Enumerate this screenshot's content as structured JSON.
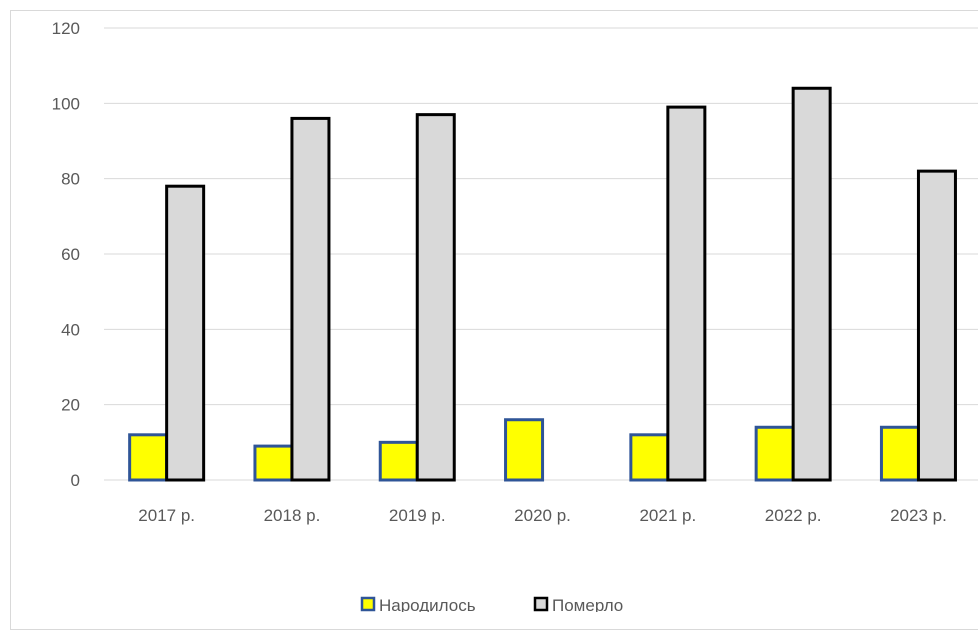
{
  "chart_data": {
    "type": "bar",
    "categories": [
      "2017 р.",
      "2018 р.",
      "2019 р.",
      "2020 р.",
      "2021 р.",
      "2022 р.",
      "2023 р."
    ],
    "series": [
      {
        "name": "Народилось",
        "values": [
          12,
          9,
          10,
          16,
          12,
          14,
          14
        ],
        "color": "#ffff00",
        "stroke": "#2f5597"
      },
      {
        "name": "Померло",
        "values": [
          78,
          96,
          97,
          null,
          99,
          104,
          82
        ],
        "color": "#d9d9d9",
        "stroke": "#000000"
      }
    ],
    "ylim": [
      0,
      120
    ],
    "yticks": [
      0,
      20,
      40,
      60,
      80,
      100,
      120
    ],
    "grid": true,
    "legend": "bottom",
    "colors": {
      "grid": "#d9d9d9",
      "axis": "#d9d9d9",
      "text": "#595959"
    }
  }
}
